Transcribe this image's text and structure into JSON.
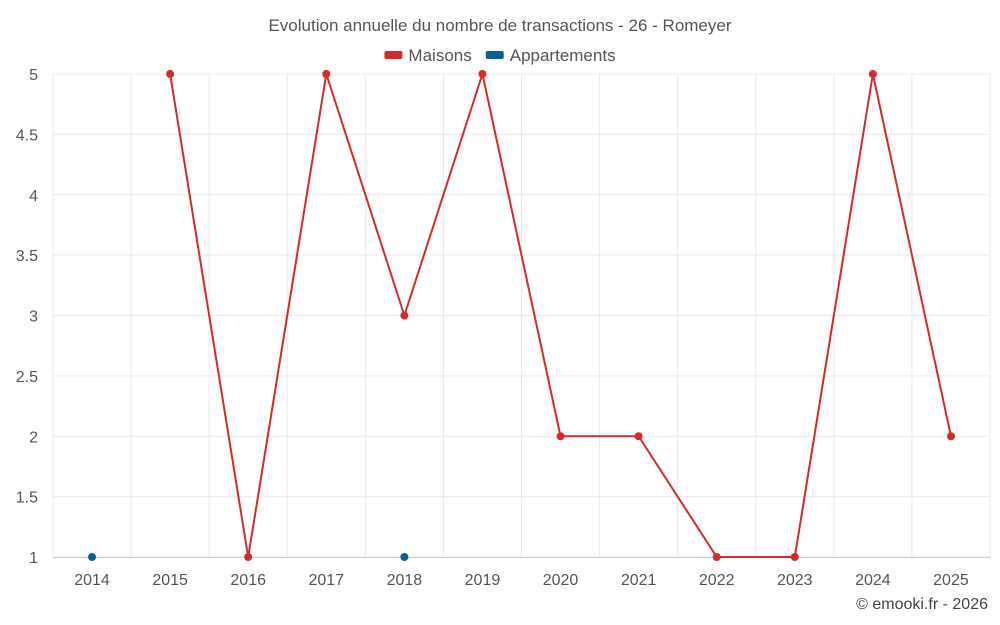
{
  "chart_data": {
    "type": "line",
    "title": "Evolution annuelle du nombre de transactions - 26 - Romeyer",
    "categories": [
      "2014",
      "2015",
      "2016",
      "2017",
      "2018",
      "2019",
      "2020",
      "2021",
      "2022",
      "2023",
      "2024",
      "2025"
    ],
    "ylim": [
      1,
      5
    ],
    "yticks": [
      1,
      1.5,
      2,
      2.5,
      3,
      3.5,
      4,
      4.5,
      5
    ],
    "ytick_labels": [
      "1",
      "1.5",
      "2",
      "2.5",
      "3",
      "3.5",
      "4",
      "4.5",
      "5"
    ],
    "grid": true,
    "legend_position": "top-center",
    "series": [
      {
        "name": "Maisons",
        "color": "#d42a2a",
        "values": [
          null,
          5,
          1,
          5,
          3,
          5,
          2,
          2,
          1,
          1,
          5,
          2
        ]
      },
      {
        "name": "Appartements",
        "color": "#0b5e96",
        "values": [
          1,
          null,
          null,
          null,
          1,
          null,
          null,
          null,
          null,
          null,
          null,
          null
        ]
      }
    ],
    "credit": "© emooki.fr - 2026"
  }
}
